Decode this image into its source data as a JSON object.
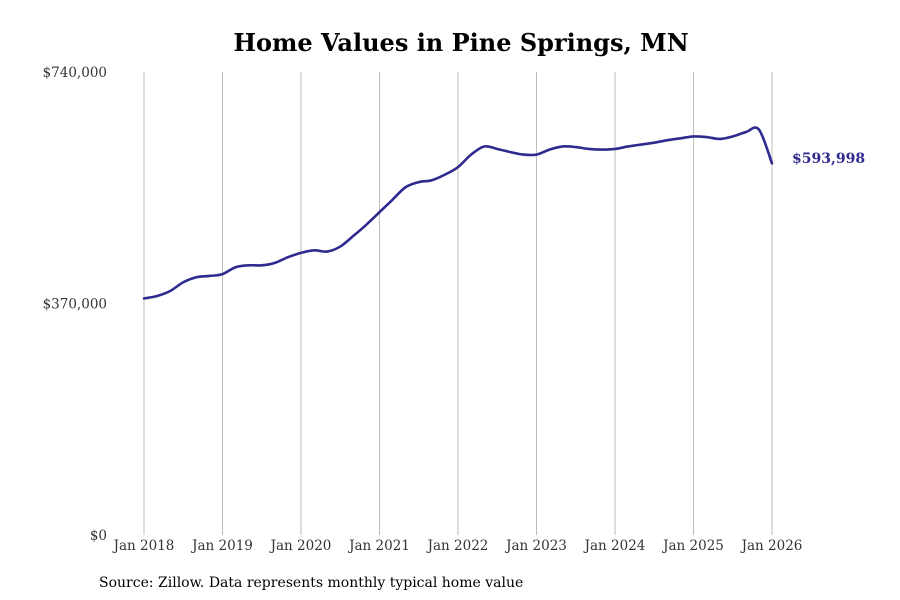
{
  "chart_data": {
    "type": "line",
    "title": "Home Values in Pine Springs, MN",
    "xlabel": "",
    "ylabel": "",
    "ylim": [
      0,
      740000
    ],
    "y_ticks": [
      {
        "value": 0,
        "label": "$0"
      },
      {
        "value": 370000,
        "label": "$370,000"
      },
      {
        "value": 740000,
        "label": "$740,000"
      }
    ],
    "x_ticks": [
      {
        "value": "2018-01",
        "label": "Jan 2018"
      },
      {
        "value": "2019-01",
        "label": "Jan 2019"
      },
      {
        "value": "2020-01",
        "label": "Jan 2020"
      },
      {
        "value": "2021-01",
        "label": "Jan 2021"
      },
      {
        "value": "2022-01",
        "label": "Jan 2022"
      },
      {
        "value": "2023-01",
        "label": "Jan 2023"
      },
      {
        "value": "2024-01",
        "label": "Jan 2024"
      },
      {
        "value": "2025-01",
        "label": "Jan 2025"
      },
      {
        "value": "2026-01",
        "label": "Jan 2026"
      }
    ],
    "x_range": [
      "2018-01",
      "2026-01"
    ],
    "grid": {
      "x": true,
      "y": false
    },
    "line_color": "#2f2a8f",
    "end_value_label": "$593,998",
    "series": [
      {
        "x": [
          "2018-01",
          "2018-03",
          "2018-05",
          "2018-07",
          "2018-09",
          "2018-11",
          "2019-01",
          "2019-03",
          "2019-05",
          "2019-07",
          "2019-09",
          "2019-11",
          "2020-01",
          "2020-03",
          "2020-05",
          "2020-07",
          "2020-09",
          "2020-11",
          "2021-01",
          "2021-03",
          "2021-05",
          "2021-07",
          "2021-09",
          "2021-11",
          "2022-01",
          "2022-03",
          "2022-05",
          "2022-07",
          "2022-09",
          "2022-11",
          "2023-01",
          "2023-03",
          "2023-05",
          "2023-07",
          "2023-09",
          "2023-11",
          "2024-01",
          "2024-03",
          "2024-05",
          "2024-07",
          "2024-09",
          "2024-11",
          "2025-01",
          "2025-03",
          "2025-05",
          "2025-07",
          "2025-09",
          "2025-11",
          "2026-01"
        ],
        "values": [
          378000,
          382000,
          390000,
          404000,
          412000,
          414000,
          417000,
          428000,
          431000,
          431000,
          435000,
          444000,
          451000,
          455000,
          453000,
          461000,
          478000,
          496000,
          516000,
          536000,
          556000,
          564000,
          567000,
          576000,
          588000,
          608000,
          621000,
          617000,
          612000,
          608000,
          608000,
          616000,
          621000,
          620000,
          617000,
          616000,
          617000,
          621000,
          624000,
          627000,
          631000,
          634000,
          637000,
          636000,
          633000,
          637000,
          644000,
          648000,
          593998
        ]
      }
    ]
  },
  "source_text": "Source: Zillow. Data represents monthly typical home value"
}
